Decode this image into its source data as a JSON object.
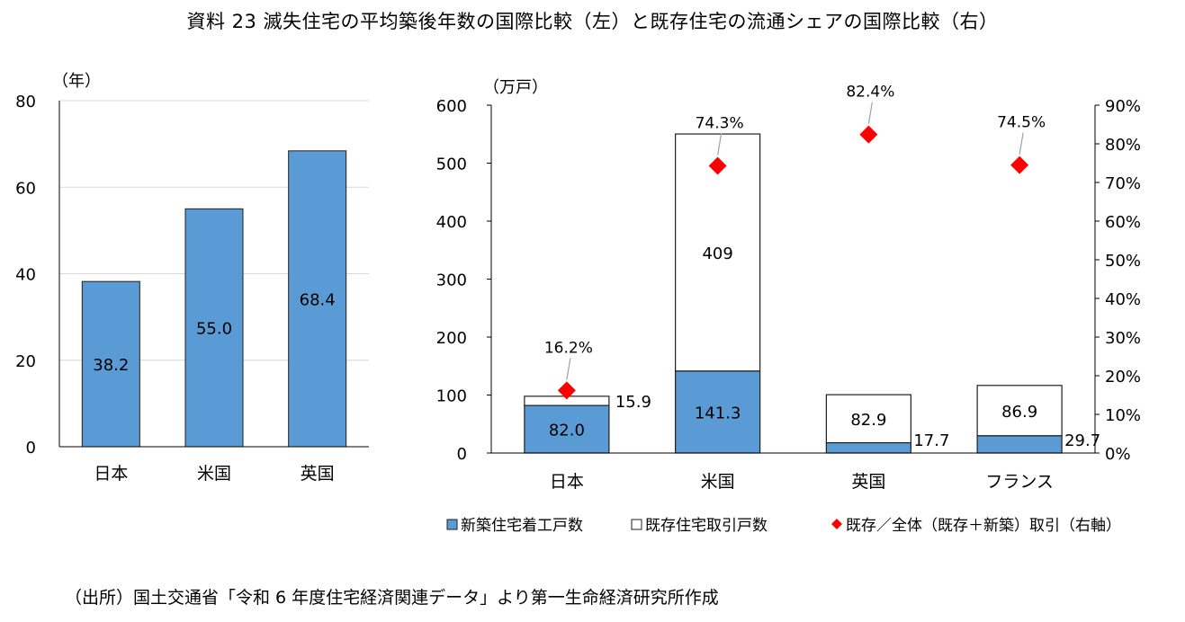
{
  "title": "資料 23  滅失住宅の平均築後年数の国際比較（左）と既存住宅の流通シェアの国際比較（右）",
  "source": "（出所）国土交通省「令和 6 年度住宅経済関連データ」より第一生命経済研究所作成",
  "colors": {
    "bar": "#5b9bd5",
    "bar_border": "#1f1f1f",
    "existing": "#ffffff",
    "marker": "#ff0000",
    "grid": "#d9d9d9",
    "axis": "#000000"
  },
  "chart_data": [
    {
      "type": "bar",
      "unit_label": "（年）",
      "categories": [
        "日本",
        "米国",
        "英国"
      ],
      "values": [
        38.2,
        55.0,
        68.4
      ],
      "value_labels": [
        "38.2",
        "55.0",
        "68.4"
      ],
      "ylim": [
        0,
        80
      ],
      "yticks": [
        "0",
        "20",
        "40",
        "60",
        "80"
      ],
      "grid": true
    },
    {
      "type": "bar",
      "stacked": true,
      "unit_label_left": "（万戸）",
      "categories": [
        "日本",
        "米国",
        "英国",
        "フランス"
      ],
      "series": [
        {
          "name": "新築住宅着工戸数",
          "values": [
            82.0,
            141.3,
            17.7,
            29.7
          ],
          "value_labels": [
            "82.0",
            "141.3",
            "17.7",
            "29.7"
          ]
        },
        {
          "name": "既存住宅取引戸数",
          "values": [
            15.9,
            409,
            82.9,
            86.9
          ],
          "value_labels": [
            "15.9",
            "409",
            "82.9",
            "86.9"
          ]
        },
        {
          "name": "既存／全体（既存＋新築）取引（右軸）",
          "axis": "right",
          "values": [
            16.2,
            74.3,
            82.4,
            74.5
          ],
          "value_labels": [
            "16.2%",
            "74.3%",
            "82.4%",
            "74.5%"
          ]
        }
      ],
      "ylim_left": [
        0,
        600
      ],
      "yticks_left": [
        "0",
        "100",
        "200",
        "300",
        "400",
        "500",
        "600"
      ],
      "ylim_right": [
        0,
        90
      ],
      "yticks_right": [
        "0%",
        "10%",
        "20%",
        "30%",
        "40%",
        "50%",
        "60%",
        "70%",
        "80%",
        "90%"
      ],
      "legend_position": "bottom",
      "grid": false
    }
  ]
}
